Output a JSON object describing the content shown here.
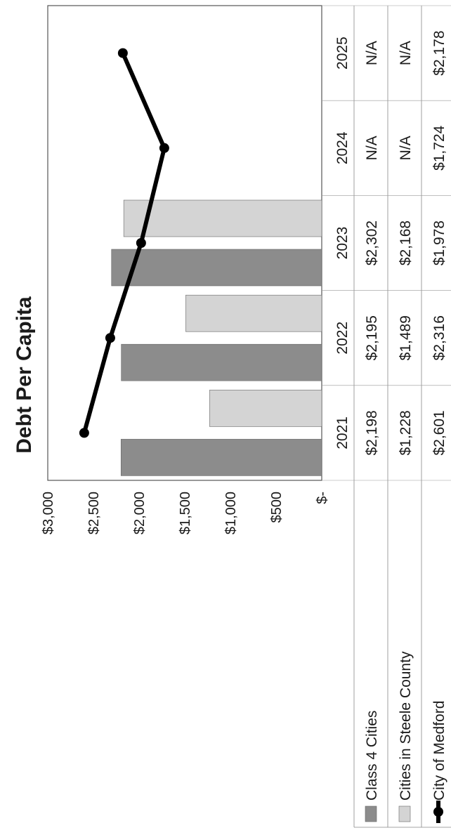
{
  "chart_data": {
    "type": "bar",
    "title": "Debt Per Capita",
    "categories": [
      "2021",
      "2022",
      "2023",
      "2024",
      "2025"
    ],
    "y_ticks": [
      "$-",
      "$500",
      "$1,000",
      "$1,500",
      "$2,000",
      "$2,500",
      "$3,000"
    ],
    "ylim": [
      0,
      3000
    ],
    "grid": false,
    "legend_position": "table-left",
    "series": [
      {
        "name": "Class 4 Cities",
        "kind": "bar",
        "color": "#8c8c8c",
        "values": [
          2198,
          2195,
          2302,
          null,
          null
        ],
        "labels": [
          "$2,198",
          "$2,195",
          "$2,302",
          "N/A",
          "N/A"
        ]
      },
      {
        "name": "Cities in Steele County",
        "kind": "bar",
        "color": "#d4d4d4",
        "values": [
          1228,
          1489,
          2168,
          null,
          null
        ],
        "labels": [
          "$1,228",
          "$1,489",
          "$2,168",
          "N/A",
          "N/A"
        ]
      },
      {
        "name": "City of Medford",
        "kind": "line",
        "color": "#000000",
        "values": [
          2601,
          2316,
          1978,
          1724,
          2178
        ],
        "labels": [
          "$2,601",
          "$2,316",
          "$1,978",
          "$1,724",
          "$2,178"
        ]
      }
    ]
  }
}
